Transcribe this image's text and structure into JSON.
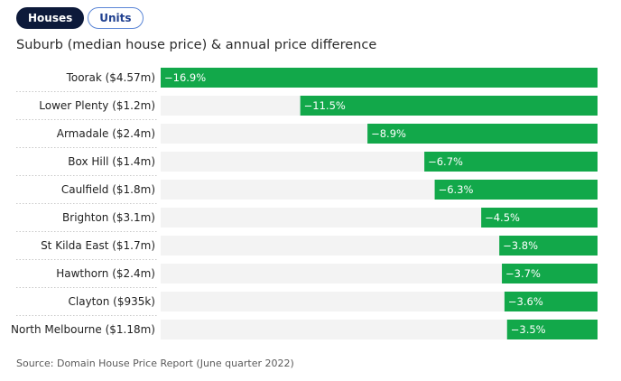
{
  "tabs": [
    {
      "label": "Houses",
      "active": true
    },
    {
      "label": "Units",
      "active": false
    }
  ],
  "source": "Source: Domain House Price Report (June quarter 2022)",
  "colors": {
    "bar": "#12a84a",
    "track": "#f3f3f3",
    "tab_active": "#0d1a3a"
  },
  "chart_data": {
    "type": "bar",
    "orientation": "horizontal",
    "title": "Suburb (median house price) & annual price difference",
    "xlabel": "",
    "ylabel": "",
    "grid": false,
    "xlim": [
      -16.9,
      0
    ],
    "categories": [
      "Toorak ($4.57m)",
      "Lower Plenty ($1.2m)",
      "Armadale ($2.4m)",
      "Box Hill ($1.4m)",
      "Caulfield ($1.8m)",
      "Brighton ($3.1m)",
      "St Kilda East ($1.7m)",
      "Hawthorn ($2.4m)",
      "Clayton ($935k)",
      "North Melbourne ($1.18m)"
    ],
    "values": [
      -16.9,
      -11.5,
      -8.9,
      -6.7,
      -6.3,
      -4.5,
      -3.8,
      -3.7,
      -3.6,
      -3.5
    ],
    "value_labels": [
      "−16.9%",
      "−11.5%",
      "−8.9%",
      "−6.7%",
      "−6.3%",
      "−4.5%",
      "−3.8%",
      "−3.7%",
      "−3.6%",
      "−3.5%"
    ]
  }
}
